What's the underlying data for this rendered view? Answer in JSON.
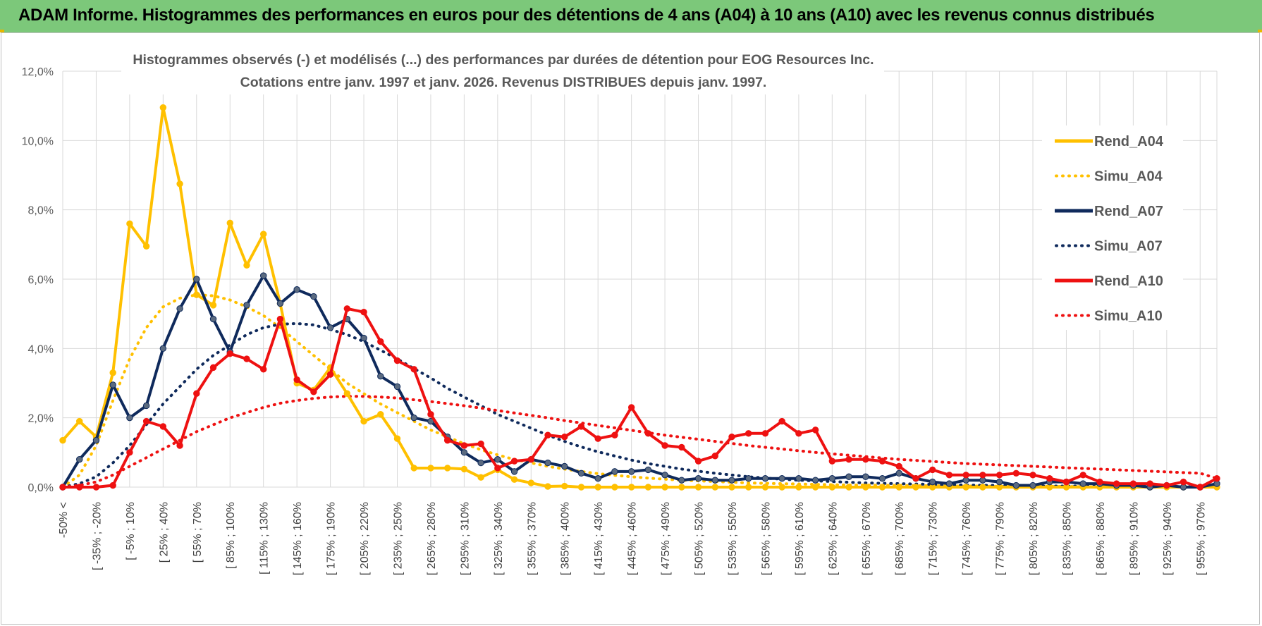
{
  "banner": {
    "title": "ADAM Informe. Histogrammes des performances en euros pour des détentions de 4 ans (A04) à 10 ans (A10) avec les revenus connus distribués"
  },
  "colors": {
    "banner": "#7cc87a",
    "A04": "#ffc000",
    "A07": "#0f2a5c",
    "A10": "#ee1111",
    "grid": "#d9d9d9"
  },
  "chart_data": {
    "type": "line",
    "title": "Histogrammes observés (-) et modélisés (...) des performances par durées de détention pour EOG Resources Inc.",
    "subtitle": "Cotations entre janv. 1997 et janv. 2026. Revenus DISTRIBUES depuis janv. 1997.",
    "ylim": [
      0,
      12
    ],
    "y_ticks": [
      "0,0%",
      "2,0%",
      "4,0%",
      "6,0%",
      "8,0%",
      "10,0%",
      "12,0%"
    ],
    "y_tick_values": [
      0,
      2,
      4,
      6,
      8,
      10,
      12
    ],
    "grid": true,
    "legend_position": "right",
    "category_count": 70,
    "x_tick_labels": [
      "-50% <",
      "[ -35% ; -20%",
      "[ -5% ; 10%",
      "[ 25% ; 40%",
      "[ 55% ; 70%",
      "[ 85% ; 100%",
      "[ 115% ; 130%",
      "[ 145% ; 160%",
      "[ 175% ; 190%",
      "[ 205% ; 220%",
      "[ 235% ; 250%",
      "[ 265% ; 280%",
      "[ 295% ; 310%",
      "[ 325% ; 340%",
      "[ 355% ; 370%",
      "[ 385% ; 400%",
      "[ 415% ; 430%",
      "[ 445% ; 460%",
      "[ 475% ; 490%",
      "[ 505% ; 520%",
      "[ 535% ; 550%",
      "[ 565% ; 580%",
      "[ 595% ; 610%",
      "[ 625% ; 640%",
      "[ 655% ; 670%",
      "[ 685% ; 700%",
      "[ 715% ; 730%",
      "[ 745% ; 760%",
      "[ 775% ; 790%",
      "[ 805% ; 820%",
      "[ 835% ; 850%",
      "[ 865% ; 880%",
      "[ 895% ; 910%",
      "[ 925% ; 940%",
      "[ 955% ; 970%"
    ],
    "series": [
      {
        "name": "Rend_A04",
        "style": "solid",
        "color": "#ffc000",
        "values": [
          1.35,
          1.9,
          1.45,
          3.3,
          7.6,
          6.95,
          10.95,
          8.75,
          5.55,
          5.25,
          7.62,
          6.4,
          7.3,
          5.3,
          3.0,
          2.8,
          3.45,
          2.7,
          1.9,
          2.1,
          1.4,
          0.55,
          0.55,
          0.55,
          0.52,
          0.28,
          0.5,
          0.22,
          0.12,
          0.02,
          0.03,
          0.0,
          0.0,
          0.0,
          0.0,
          0.0,
          0.0,
          0.0,
          0.0,
          0.0,
          0.0,
          0.0,
          0.0,
          0.0,
          0.0,
          0.0,
          0.0,
          0.0,
          0.0,
          0.0,
          0.0,
          0.0,
          0.0,
          0.0,
          0.0,
          0.0,
          0.0,
          0.0,
          0.0,
          0.0,
          0.0,
          0.0,
          0.0,
          0.0,
          0.0,
          0.0,
          0.0,
          0.0,
          0.0,
          0.0
        ]
      },
      {
        "name": "Simu_A04",
        "style": "dotted",
        "color": "#ffc000",
        "values": [
          0.0,
          0.35,
          1.2,
          2.5,
          3.7,
          4.6,
          5.2,
          5.45,
          5.55,
          5.52,
          5.4,
          5.2,
          4.95,
          4.6,
          4.2,
          3.8,
          3.4,
          3.0,
          2.7,
          2.4,
          2.15,
          1.9,
          1.65,
          1.45,
          1.25,
          1.08,
          0.93,
          0.8,
          0.7,
          0.6,
          0.52,
          0.45,
          0.39,
          0.34,
          0.3,
          0.26,
          0.23,
          0.2,
          0.18,
          0.16,
          0.14,
          0.12,
          0.11,
          0.1,
          0.09,
          0.08,
          0.07,
          0.06,
          0.06,
          0.05,
          0.05,
          0.04,
          0.04,
          0.03,
          0.03,
          0.03,
          0.02,
          0.02,
          0.02,
          0.02,
          0.02,
          0.01,
          0.01,
          0.01,
          0.01,
          0.01,
          0.01,
          0.01,
          0.01,
          0.0
        ]
      },
      {
        "name": "Rend_A07",
        "style": "solid",
        "color": "#0f2a5c",
        "values": [
          0.0,
          0.8,
          1.35,
          2.95,
          2.0,
          2.35,
          4.0,
          5.15,
          6.0,
          4.85,
          3.9,
          5.25,
          6.1,
          5.3,
          5.7,
          5.5,
          4.6,
          4.85,
          4.3,
          3.2,
          2.9,
          2.0,
          1.9,
          1.45,
          1.0,
          0.7,
          0.8,
          0.45,
          0.8,
          0.7,
          0.6,
          0.4,
          0.25,
          0.45,
          0.45,
          0.5,
          0.35,
          0.2,
          0.25,
          0.2,
          0.2,
          0.25,
          0.25,
          0.25,
          0.25,
          0.2,
          0.25,
          0.3,
          0.3,
          0.25,
          0.4,
          0.25,
          0.15,
          0.1,
          0.2,
          0.2,
          0.15,
          0.05,
          0.05,
          0.15,
          0.15,
          0.1,
          0.1,
          0.05,
          0.05,
          0.0,
          0.05,
          0.0,
          0.0,
          0.1
        ]
      },
      {
        "name": "Simu_A07",
        "style": "dotted",
        "color": "#0f2a5c",
        "values": [
          0.0,
          0.1,
          0.3,
          0.7,
          1.2,
          1.8,
          2.4,
          2.9,
          3.4,
          3.8,
          4.1,
          4.4,
          4.6,
          4.7,
          4.72,
          4.68,
          4.55,
          4.4,
          4.2,
          3.95,
          3.7,
          3.42,
          3.15,
          2.85,
          2.6,
          2.35,
          2.1,
          1.9,
          1.7,
          1.5,
          1.32,
          1.16,
          1.02,
          0.9,
          0.78,
          0.68,
          0.6,
          0.52,
          0.46,
          0.4,
          0.35,
          0.3,
          0.26,
          0.23,
          0.2,
          0.18,
          0.16,
          0.14,
          0.12,
          0.11,
          0.1,
          0.09,
          0.08,
          0.07,
          0.06,
          0.05,
          0.05,
          0.04,
          0.04,
          0.03,
          0.03,
          0.03,
          0.02,
          0.02,
          0.02,
          0.02,
          0.02,
          0.01,
          0.01,
          0.01
        ]
      },
      {
        "name": "Rend_A10",
        "style": "solid",
        "color": "#ee1111",
        "values": [
          0.0,
          0.0,
          0.0,
          0.05,
          1.0,
          1.9,
          1.75,
          1.2,
          2.7,
          3.45,
          3.85,
          3.7,
          3.4,
          4.85,
          3.1,
          2.75,
          3.25,
          5.15,
          5.05,
          4.2,
          3.65,
          3.4,
          2.1,
          1.35,
          1.2,
          1.25,
          0.55,
          0.75,
          0.8,
          1.5,
          1.45,
          1.75,
          1.4,
          1.5,
          2.3,
          1.55,
          1.2,
          1.15,
          0.75,
          0.9,
          1.45,
          1.55,
          1.55,
          1.9,
          1.55,
          1.65,
          0.75,
          0.8,
          0.8,
          0.75,
          0.6,
          0.25,
          0.5,
          0.35,
          0.35,
          0.35,
          0.35,
          0.4,
          0.35,
          0.25,
          0.15,
          0.35,
          0.15,
          0.1,
          0.1,
          0.1,
          0.05,
          0.15,
          0.0,
          0.25
        ]
      },
      {
        "name": "Simu_A10",
        "style": "dotted",
        "color": "#ee1111",
        "values": [
          0.0,
          0.05,
          0.15,
          0.35,
          0.6,
          0.85,
          1.1,
          1.35,
          1.6,
          1.8,
          2.0,
          2.15,
          2.3,
          2.42,
          2.5,
          2.56,
          2.6,
          2.62,
          2.62,
          2.6,
          2.57,
          2.52,
          2.47,
          2.41,
          2.35,
          2.28,
          2.21,
          2.14,
          2.07,
          2.0,
          1.92,
          1.85,
          1.78,
          1.71,
          1.64,
          1.57,
          1.5,
          1.44,
          1.38,
          1.32,
          1.26,
          1.2,
          1.15,
          1.1,
          1.05,
          1.0,
          0.96,
          0.92,
          0.88,
          0.84,
          0.8,
          0.77,
          0.74,
          0.71,
          0.68,
          0.66,
          0.64,
          0.62,
          0.6,
          0.58,
          0.56,
          0.54,
          0.52,
          0.5,
          0.48,
          0.46,
          0.44,
          0.42,
          0.4,
          0.25
        ]
      }
    ]
  }
}
